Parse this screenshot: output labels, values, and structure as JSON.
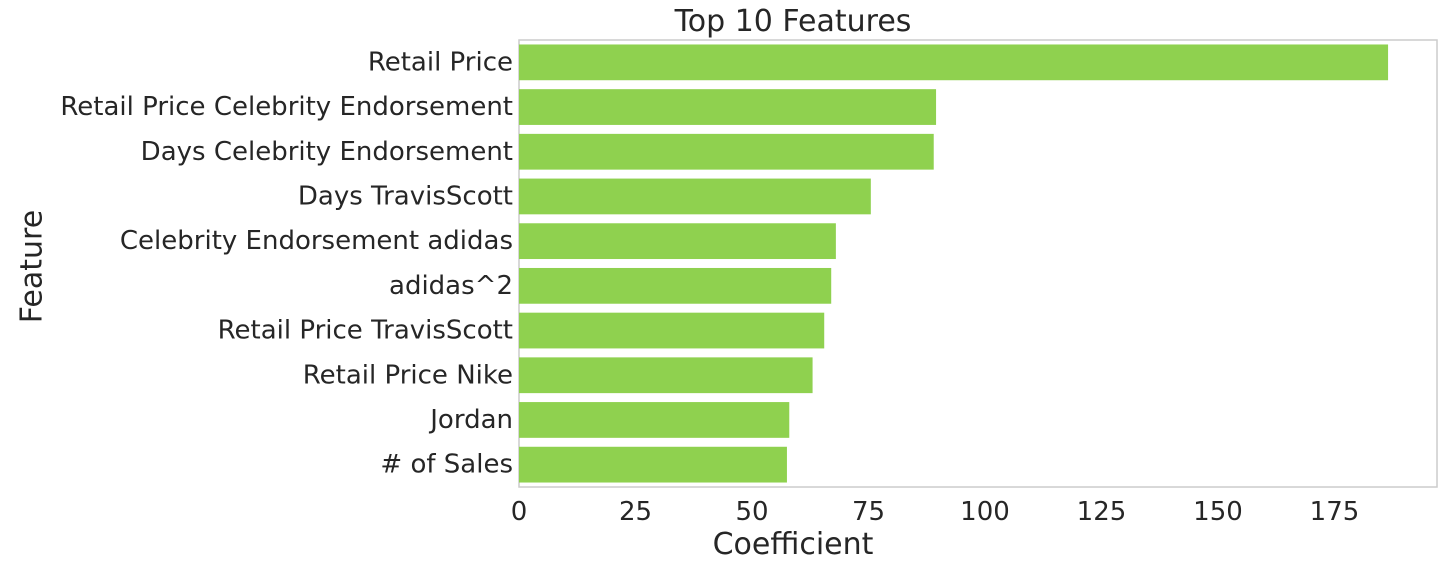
{
  "chart_data": {
    "type": "bar",
    "orientation": "horizontal",
    "title": "Top 10 Features",
    "xlabel": "Coefficient",
    "ylabel": "Feature",
    "categories": [
      "Retail Price",
      "Retail Price Celebrity Endorsement",
      "Days Celebrity Endorsement",
      "Days TravisScott",
      "Celebrity Endorsement adidas",
      "adidas^2",
      "Retail Price TravisScott",
      "Retail Price Nike",
      "Jordan",
      "# of Sales"
    ],
    "values": [
      186.5,
      89.5,
      89.0,
      75.5,
      68.0,
      67.0,
      65.5,
      63.0,
      58.0,
      57.5
    ],
    "xlim": [
      0,
      197
    ],
    "xticks": [
      0,
      25,
      50,
      75,
      100,
      125,
      150,
      175
    ],
    "grid": false,
    "bar_color": "#8fd14f",
    "spine_color": "#cccccc"
  }
}
